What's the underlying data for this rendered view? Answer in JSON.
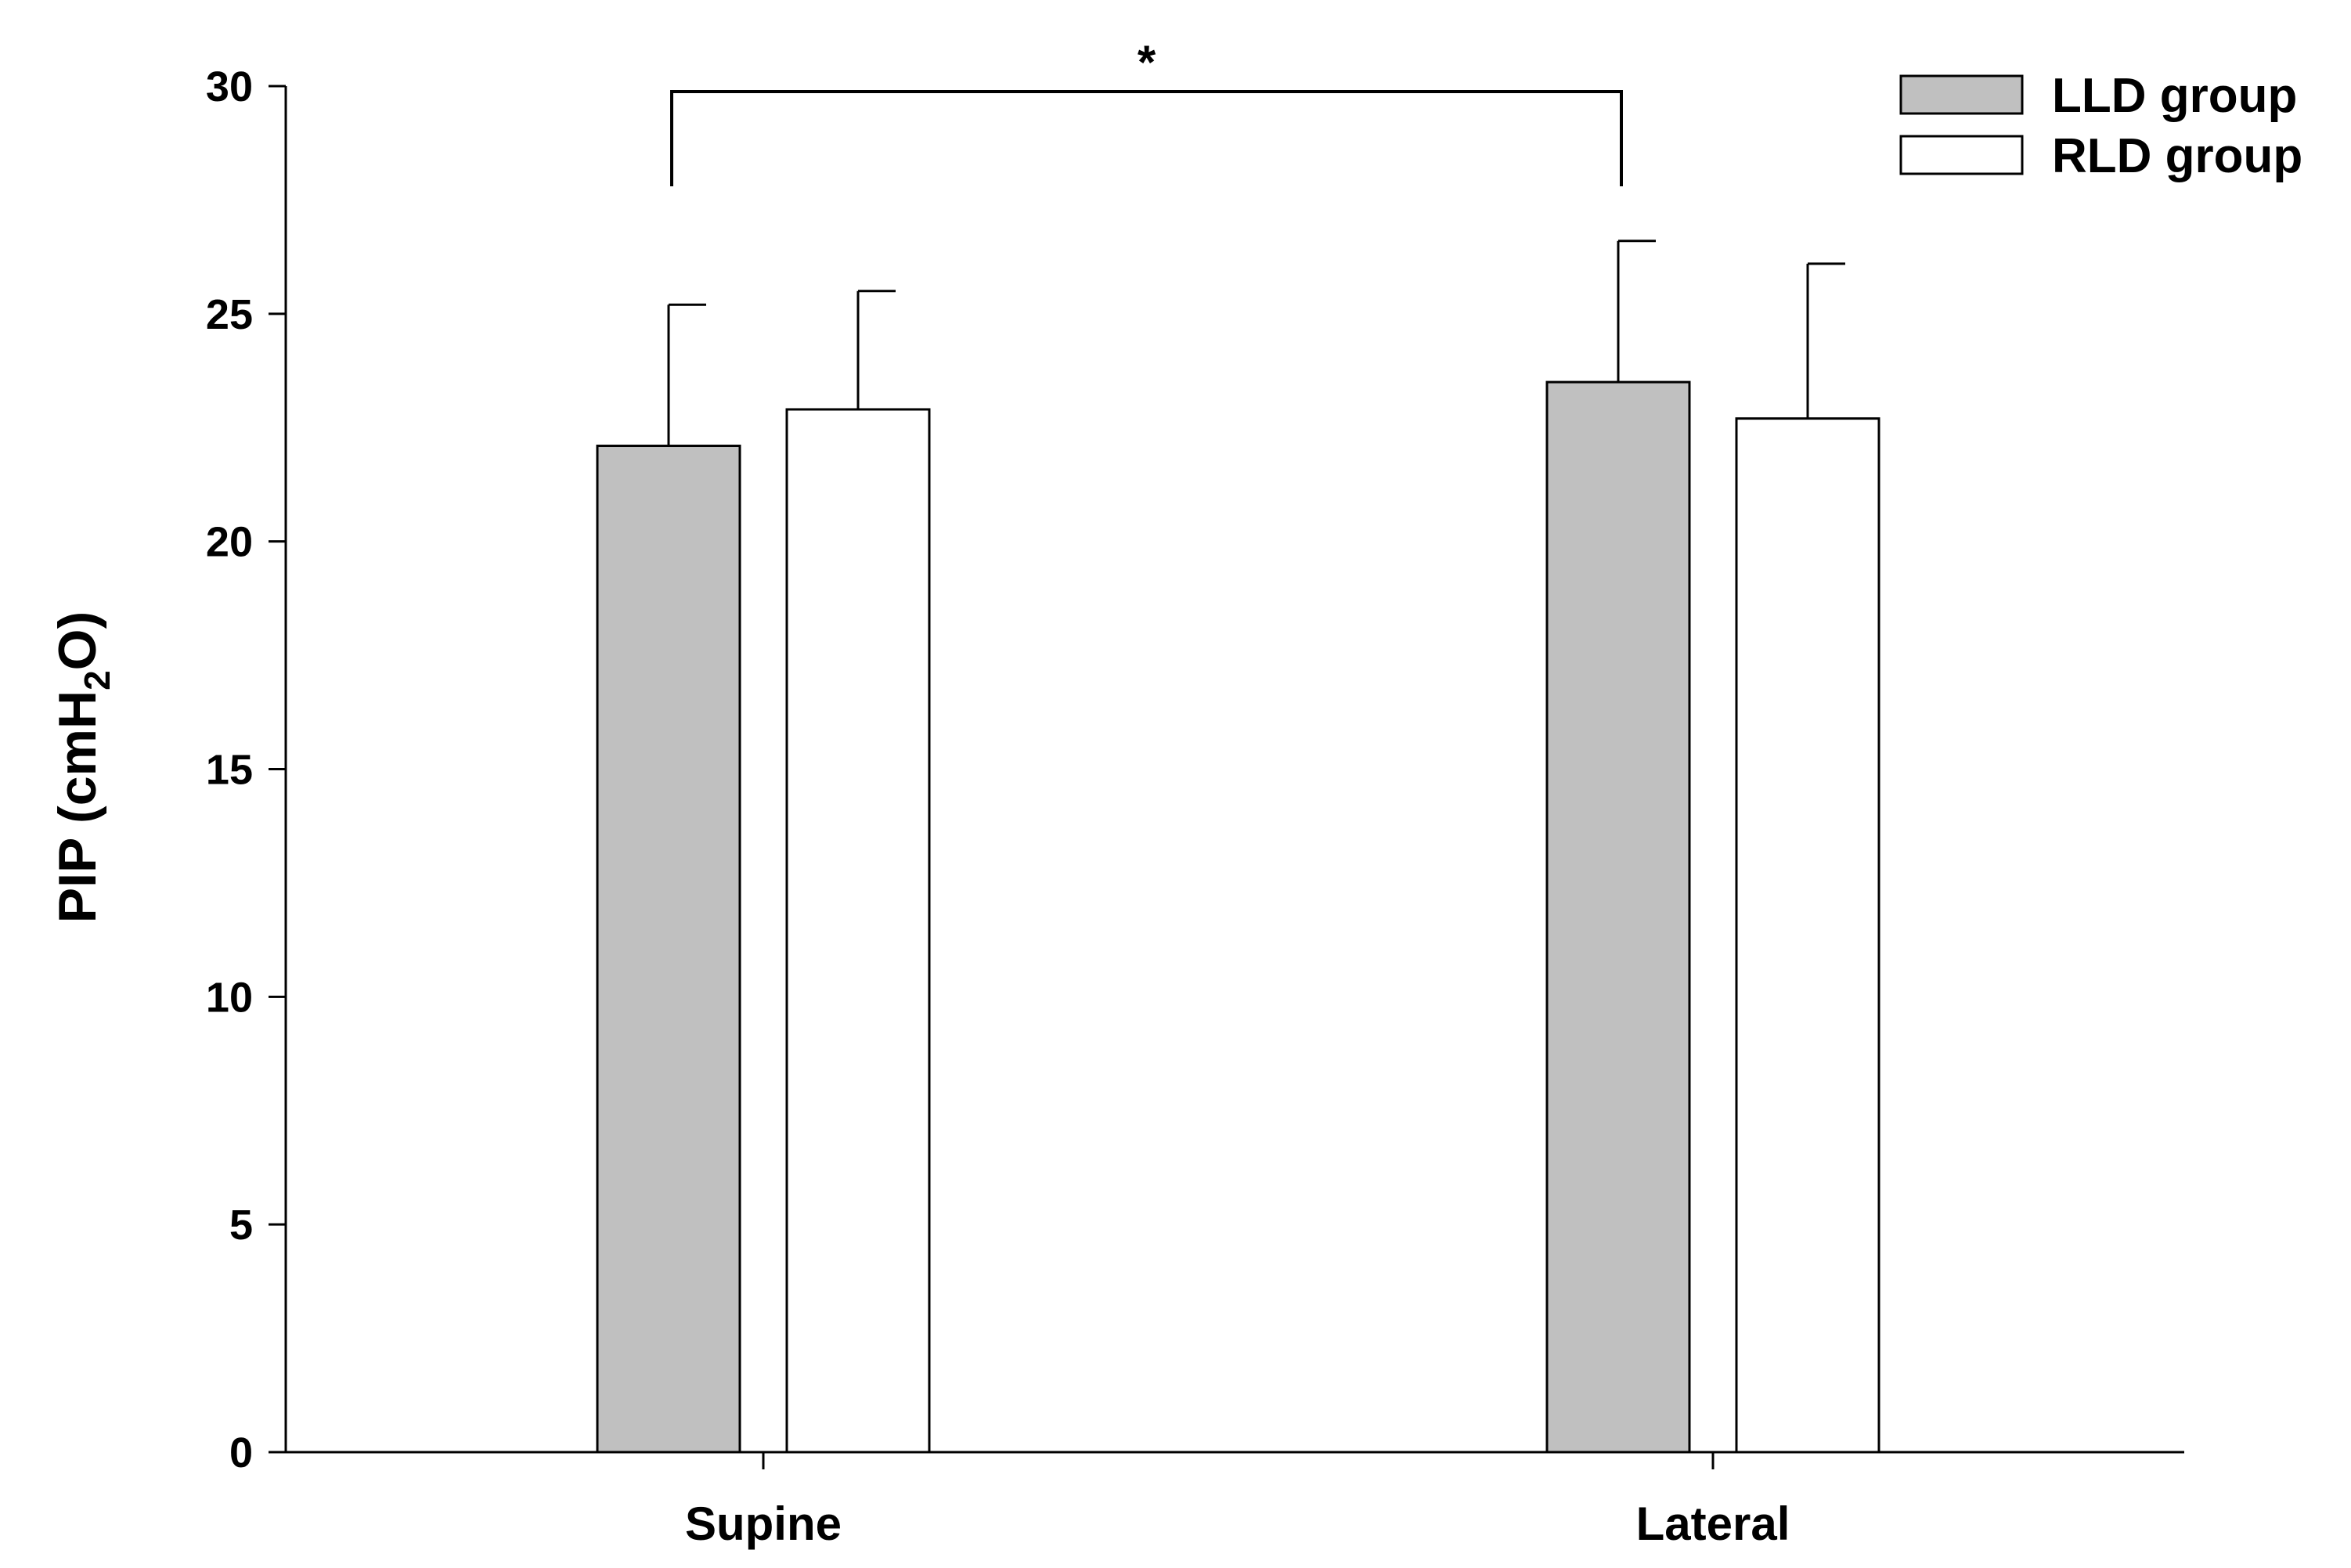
{
  "chart_data": {
    "type": "bar",
    "categories": [
      "Supine",
      "Lateral"
    ],
    "series": [
      {
        "name": "LLD group",
        "values": [
          22.1,
          23.5
        ],
        "errors": [
          3.1,
          3.1
        ],
        "color": "#c0c0c0"
      },
      {
        "name": "RLD group",
        "values": [
          22.9,
          22.7
        ],
        "errors": [
          2.6,
          3.4
        ],
        "color": "#ffffff"
      }
    ],
    "ylabel": {
      "prefix": "PIP (cmH",
      "subscript": "2",
      "suffix": "O)"
    },
    "ylim": [
      0,
      30
    ],
    "yticks": [
      "0",
      "5",
      "10",
      "15",
      "20",
      "25",
      "30"
    ],
    "legend_position": "top-right",
    "grid": false,
    "annotations": [
      {
        "text": "*",
        "between": [
          "Supine LLD group",
          "Lateral LLD group"
        ]
      }
    ]
  }
}
